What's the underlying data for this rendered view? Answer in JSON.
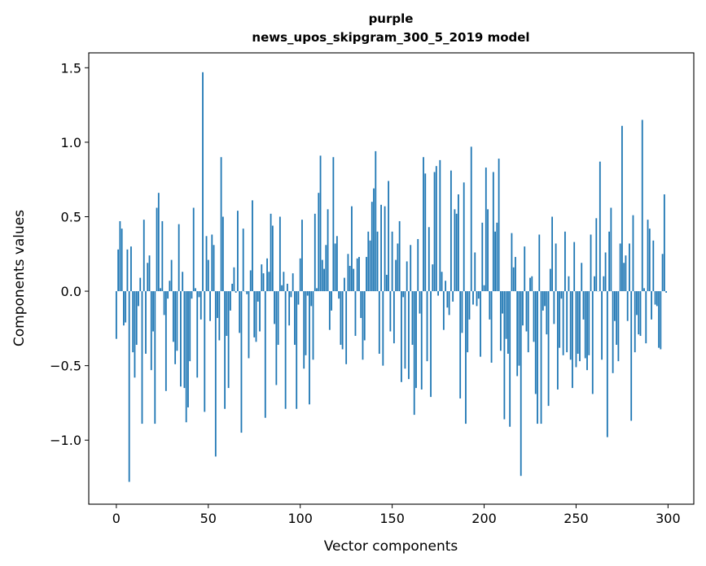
{
  "chart_data": {
    "type": "bar",
    "title": "purple",
    "subtitle": "news_upos_skipgram_300_5_2019 model",
    "xlabel": "Vector components",
    "ylabel": "Components values",
    "xlim": [
      -15,
      314
    ],
    "ylim": [
      -1.43,
      1.6
    ],
    "xticks": [
      0,
      50,
      100,
      150,
      200,
      250,
      300
    ],
    "xtick_labels": [
      "0",
      "50",
      "100",
      "150",
      "200",
      "250",
      "300"
    ],
    "yticks": [
      -1.0,
      -0.5,
      0.0,
      0.5,
      1.0,
      1.5
    ],
    "ytick_labels": [
      "−1.0",
      "−0.5",
      "0.0",
      "0.5",
      "1.0",
      "1.5"
    ],
    "grid": false,
    "bar_color": "#1f77b4",
    "values": [
      -0.32,
      0.28,
      0.47,
      0.42,
      -0.23,
      -0.21,
      0.28,
      -1.28,
      0.3,
      -0.41,
      -0.58,
      -0.36,
      -0.1,
      0.09,
      -0.89,
      0.48,
      -0.42,
      0.19,
      0.24,
      -0.53,
      -0.27,
      -0.89,
      0.56,
      0.66,
      0.02,
      0.47,
      -0.16,
      -0.67,
      -0.05,
      0.07,
      0.21,
      -0.34,
      -0.49,
      -0.4,
      0.45,
      -0.64,
      0.13,
      -0.65,
      -0.88,
      -0.78,
      -0.47,
      -0.05,
      0.56,
      0.02,
      -0.58,
      -0.04,
      -0.19,
      1.47,
      -0.81,
      0.37,
      0.21,
      -0.2,
      0.38,
      0.31,
      -1.11,
      -0.18,
      -0.33,
      0.9,
      0.5,
      -0.79,
      -0.3,
      -0.65,
      -0.13,
      0.05,
      0.16,
      -0.01,
      0.54,
      -0.28,
      -0.95,
      0.42,
      0.0,
      -0.02,
      -0.45,
      0.14,
      0.61,
      -0.31,
      -0.34,
      -0.07,
      -0.27,
      0.18,
      0.12,
      -0.85,
      0.22,
      0.13,
      0.52,
      0.44,
      -0.22,
      -0.63,
      -0.36,
      0.5,
      0.04,
      0.13,
      -0.79,
      0.05,
      -0.23,
      -0.04,
      0.12,
      -0.36,
      -0.79,
      -0.09,
      0.22,
      0.48,
      -0.52,
      -0.43,
      -0.03,
      -0.76,
      -0.1,
      -0.46,
      0.52,
      0.02,
      0.66,
      0.91,
      0.21,
      0.15,
      0.31,
      0.55,
      -0.26,
      -0.13,
      0.9,
      0.32,
      0.37,
      -0.05,
      -0.36,
      -0.39,
      0.09,
      -0.49,
      0.25,
      0.17,
      0.57,
      0.15,
      -0.3,
      0.22,
      0.23,
      -0.18,
      -0.46,
      -0.33,
      0.23,
      0.4,
      0.34,
      0.6,
      0.69,
      0.94,
      0.4,
      -0.42,
      0.58,
      -0.5,
      0.57,
      0.11,
      0.74,
      -0.27,
      0.4,
      -0.35,
      0.21,
      0.32,
      0.47,
      -0.61,
      -0.04,
      -0.52,
      0.2,
      -0.59,
      0.31,
      -0.36,
      -0.83,
      -0.65,
      0.35,
      -0.15,
      -0.66,
      0.9,
      0.79,
      -0.47,
      0.43,
      -0.71,
      0.18,
      0.8,
      0.84,
      -0.03,
      0.88,
      0.13,
      -0.26,
      0.07,
      -0.11,
      -0.16,
      0.81,
      -0.07,
      0.55,
      0.52,
      0.65,
      -0.72,
      -0.28,
      0.73,
      -0.89,
      -0.41,
      -0.19,
      0.97,
      -0.09,
      0.26,
      -0.1,
      -0.05,
      -0.44,
      0.46,
      0.04,
      0.83,
      0.55,
      -0.19,
      -0.48,
      0.8,
      0.4,
      0.46,
      0.89,
      -0.4,
      -0.15,
      -0.86,
      -0.32,
      -0.42,
      -0.91,
      0.39,
      0.16,
      0.23,
      -0.57,
      -0.5,
      -1.24,
      -0.23,
      0.3,
      -0.27,
      -0.41,
      0.09,
      0.1,
      -0.34,
      -0.69,
      -0.89,
      0.38,
      -0.89,
      -0.13,
      -0.1,
      -0.29,
      -0.77,
      0.15,
      0.5,
      -0.22,
      0.32,
      -0.66,
      -0.38,
      -0.05,
      -0.43,
      0.4,
      -0.41,
      0.1,
      -0.46,
      -0.65,
      0.33,
      -0.51,
      -0.42,
      -0.47,
      0.19,
      -0.19,
      -0.45,
      -0.53,
      -0.43,
      0.38,
      -0.69,
      0.1,
      0.49,
      0.0,
      0.87,
      -0.46,
      0.1,
      0.26,
      -0.98,
      0.4,
      0.56,
      -0.55,
      -0.2,
      -0.36,
      -0.47,
      0.32,
      1.11,
      0.19,
      0.24,
      -0.2,
      0.32,
      -0.87,
      0.51,
      -0.41,
      -0.16,
      -0.29,
      -0.3,
      1.15,
      0.02,
      -0.35,
      0.48,
      0.42,
      -0.19,
      0.34,
      -0.09,
      -0.1,
      -0.38,
      -0.39,
      0.25,
      0.65,
      -0.01
    ]
  }
}
